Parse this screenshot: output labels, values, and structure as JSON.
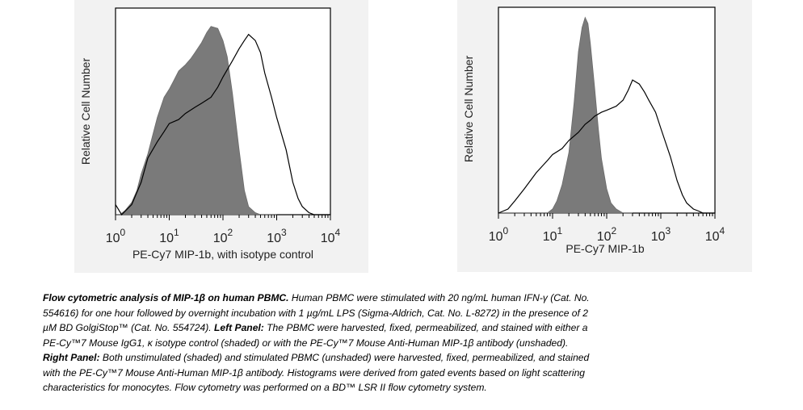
{
  "chart_data": [
    {
      "type": "area",
      "xscale": "log",
      "xlim": [
        1,
        10000
      ],
      "xticks": [
        "10",
        "10",
        "10",
        "10",
        "10"
      ],
      "xtick_exponents": [
        "0",
        "1",
        "2",
        "3",
        "4"
      ],
      "xlabel": "PE-Cy7 MIP-1b, with isotype control",
      "ylabel": "Relative Cell Number",
      "series": [
        {
          "style": "shaded",
          "x": [
            1.0,
            1.2,
            1.5,
            2,
            2.5,
            3,
            4,
            5,
            6,
            8,
            10,
            12,
            15,
            20,
            25,
            30,
            40,
            50,
            60,
            80,
            100,
            120,
            150,
            200,
            250,
            300,
            400,
            500,
            600,
            800,
            1000
          ],
          "y": [
            0.0,
            0.0,
            0.02,
            0.06,
            0.12,
            0.2,
            0.3,
            0.4,
            0.48,
            0.58,
            0.62,
            0.66,
            0.71,
            0.74,
            0.77,
            0.8,
            0.85,
            0.9,
            0.93,
            0.92,
            0.86,
            0.78,
            0.6,
            0.32,
            0.12,
            0.04,
            0.01,
            0.0,
            0.0,
            0.0,
            0.0
          ]
        },
        {
          "style": "unshaded",
          "x": [
            1.0,
            1.3,
            2,
            3,
            4,
            6,
            8,
            10,
            15,
            20,
            30,
            40,
            60,
            80,
            100,
            150,
            200,
            250,
            300,
            400,
            500,
            600,
            800,
            1000,
            1500,
            2000,
            2500,
            3000,
            4000,
            5000,
            6000,
            8000,
            10000
          ],
          "y": [
            0.05,
            0.0,
            0.05,
            0.16,
            0.28,
            0.36,
            0.41,
            0.45,
            0.47,
            0.5,
            0.53,
            0.55,
            0.58,
            0.63,
            0.68,
            0.76,
            0.82,
            0.86,
            0.89,
            0.86,
            0.8,
            0.7,
            0.58,
            0.48,
            0.32,
            0.16,
            0.08,
            0.04,
            0.01,
            0.0,
            0.0,
            0.0,
            0.0
          ]
        }
      ]
    },
    {
      "type": "area",
      "xscale": "log",
      "xlim": [
        1,
        10000
      ],
      "xticks": [
        "10",
        "10",
        "10",
        "10",
        "10"
      ],
      "xtick_exponents": [
        "0",
        "1",
        "2",
        "3",
        "4"
      ],
      "xlabel": "PE-Cy7 MIP-1b",
      "ylabel": "Relative Cell Number",
      "series": [
        {
          "style": "shaded",
          "x": [
            1,
            5,
            8,
            10,
            12,
            15,
            20,
            25,
            30,
            35,
            40,
            45,
            50,
            60,
            70,
            80,
            100,
            120,
            150,
            200,
            250,
            300
          ],
          "y": [
            0.0,
            0.0,
            0.0,
            0.02,
            0.06,
            0.14,
            0.3,
            0.55,
            0.8,
            0.92,
            0.97,
            0.94,
            0.84,
            0.62,
            0.42,
            0.27,
            0.12,
            0.05,
            0.02,
            0.0,
            0.0,
            0.0
          ]
        },
        {
          "style": "unshaded",
          "x": [
            1.0,
            1.5,
            2,
            3,
            5,
            8,
            10,
            15,
            20,
            30,
            40,
            50,
            60,
            80,
            100,
            150,
            200,
            250,
            300,
            400,
            500,
            600,
            800,
            1000,
            1500,
            2000,
            2500,
            3000,
            4000,
            5000,
            6000,
            8000,
            10000
          ],
          "y": [
            0.0,
            0.02,
            0.06,
            0.12,
            0.2,
            0.26,
            0.29,
            0.32,
            0.36,
            0.4,
            0.44,
            0.46,
            0.48,
            0.5,
            0.51,
            0.53,
            0.56,
            0.61,
            0.66,
            0.64,
            0.6,
            0.56,
            0.5,
            0.42,
            0.28,
            0.16,
            0.09,
            0.05,
            0.02,
            0.01,
            0.0,
            0.0,
            0.0
          ]
        }
      ]
    }
  ],
  "caption": {
    "title": "Flow cytometric analysis of MIP-1β on human PBMC.",
    "line1_rest": " Human PBMC were stimulated with 20 ng/mL human IFN-γ (Cat. No.",
    "line2": "554616) for one hour followed by overnight incubation with 1 µg/mL LPS (Sigma-Aldrich, Cat. No. L-8272) in the presence of 2",
    "line3a": "µM BD GolgiStop™ (Cat. No. 554724). ",
    "line3_bold": "Left Panel:",
    "line3b": " The PBMC were harvested, fixed, permeabilized, and stained with either a",
    "line4": "PE-Cy™7 Mouse IgG1, κ isotype control (shaded) or with the PE-Cy™7 Mouse Anti-Human MIP-1β antibody (unshaded).",
    "line5_bold": "Right Panel:",
    "line5": " Both unstimulated (shaded) and stimulated PBMC (unshaded) were harvested, fixed, permeabilized, and stained",
    "line6": "with the PE-Cy™7 Mouse Anti-Human MIP-1β antibody.  Histograms were derived from gated events based on light scattering",
    "line7": "characteristics for monocytes.  Flow cytometry was performed on a BD™ LSR II flow cytometry system."
  }
}
